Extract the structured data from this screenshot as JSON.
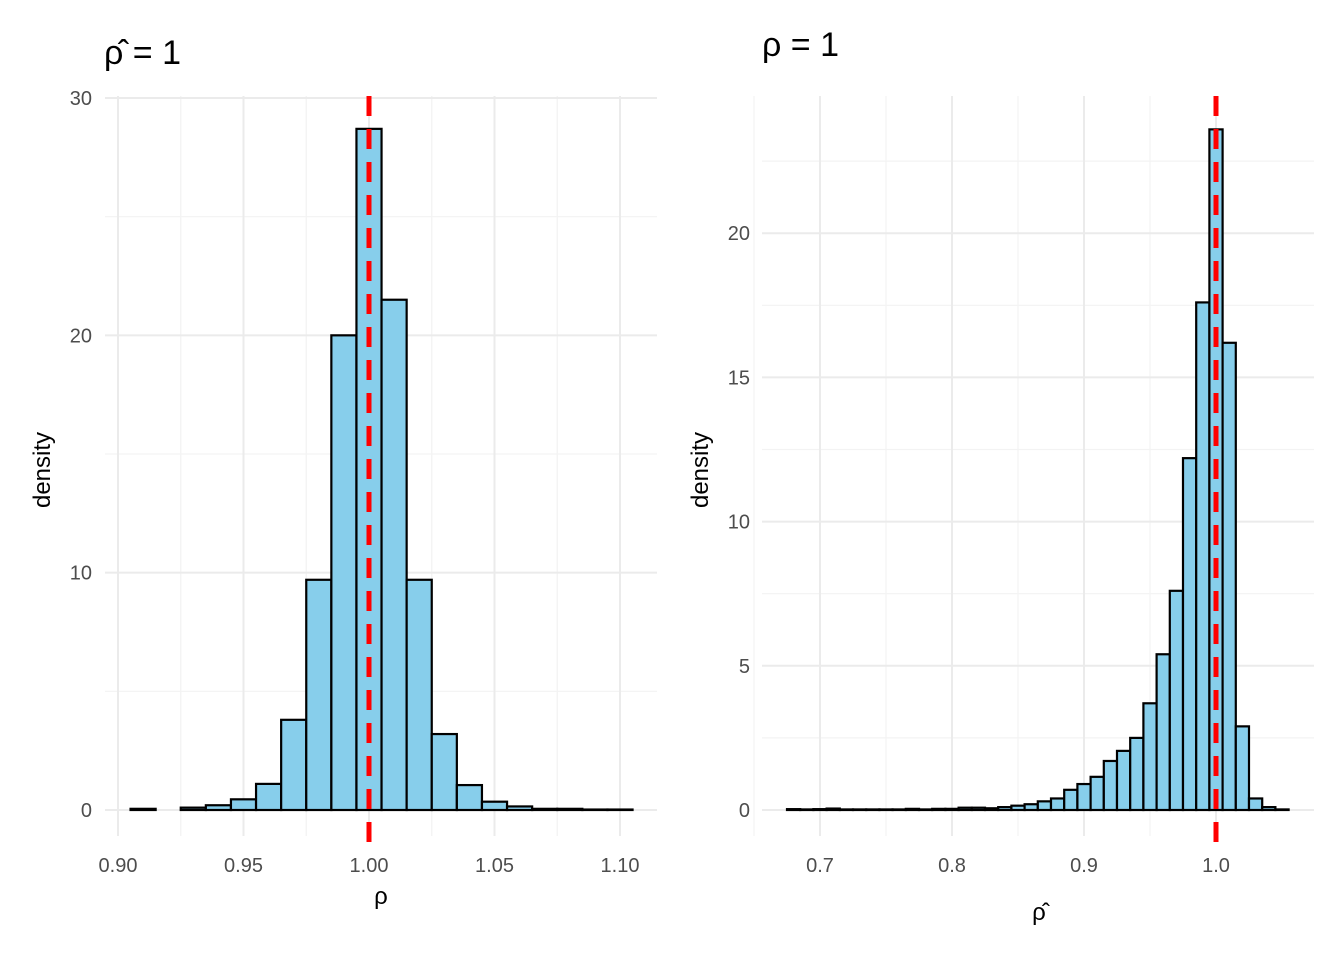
{
  "figure": {
    "panels": [
      {
        "title": "ρ̂ = 1",
        "xlabel": "ρ",
        "ylabel": "density"
      },
      {
        "title": "ρ = 1",
        "xlabel": "ρ̂",
        "ylabel": "density"
      }
    ]
  },
  "colors": {
    "bar_fill": "#87CEEB",
    "bar_stroke": "#000000",
    "reference_line": "#FF0000"
  },
  "chart_data": [
    {
      "type": "bar",
      "subtype": "histogram",
      "title": "ρ̂ = 1",
      "xlabel": "ρ",
      "ylabel": "density",
      "xlim": [
        0.9,
        1.1
      ],
      "ylim": [
        0,
        30
      ],
      "xticks": [
        0.9,
        0.95,
        1.0,
        1.05,
        1.1
      ],
      "xtick_labels": [
        "0.90",
        "0.95",
        "1.00",
        "1.05",
        "1.10"
      ],
      "yticks": [
        0,
        10,
        20,
        30
      ],
      "grid": true,
      "bins": [
        {
          "x0": 0.905,
          "x1": 0.915,
          "density": 0.05
        },
        {
          "x0": 0.915,
          "x1": 0.925,
          "density": 0.0
        },
        {
          "x0": 0.925,
          "x1": 0.935,
          "density": 0.1
        },
        {
          "x0": 0.935,
          "x1": 0.945,
          "density": 0.2
        },
        {
          "x0": 0.945,
          "x1": 0.955,
          "density": 0.45
        },
        {
          "x0": 0.955,
          "x1": 0.965,
          "density": 1.1
        },
        {
          "x0": 0.965,
          "x1": 0.975,
          "density": 3.8
        },
        {
          "x0": 0.975,
          "x1": 0.985,
          "density": 9.7
        },
        {
          "x0": 0.985,
          "x1": 0.995,
          "density": 20.0
        },
        {
          "x0": 0.995,
          "x1": 1.005,
          "density": 28.7
        },
        {
          "x0": 1.005,
          "x1": 1.015,
          "density": 21.5
        },
        {
          "x0": 1.015,
          "x1": 1.025,
          "density": 9.7
        },
        {
          "x0": 1.025,
          "x1": 1.035,
          "density": 3.2
        },
        {
          "x0": 1.035,
          "x1": 1.045,
          "density": 1.05
        },
        {
          "x0": 1.045,
          "x1": 1.055,
          "density": 0.35
        },
        {
          "x0": 1.055,
          "x1": 1.065,
          "density": 0.15
        },
        {
          "x0": 1.065,
          "x1": 1.075,
          "density": 0.05
        },
        {
          "x0": 1.075,
          "x1": 1.085,
          "density": 0.05
        },
        {
          "x0": 1.085,
          "x1": 1.095,
          "density": 0.02
        },
        {
          "x0": 1.095,
          "x1": 1.105,
          "density": 0.02
        }
      ],
      "reference_line": {
        "x": 1.0,
        "style": "dashed"
      }
    },
    {
      "type": "bar",
      "subtype": "histogram",
      "title": "ρ = 1",
      "xlabel": "ρ̂",
      "ylabel": "density",
      "xlim": [
        0.67,
        1.055
      ],
      "ylim": [
        0,
        24
      ],
      "xticks": [
        0.7,
        0.8,
        0.9,
        1.0
      ],
      "xtick_labels": [
        "0.7",
        "0.8",
        "0.9",
        "1.0"
      ],
      "yticks": [
        0,
        5,
        10,
        15,
        20
      ],
      "grid": true,
      "bins": [
        {
          "x0": 0.675,
          "x1": 0.685,
          "density": 0.03
        },
        {
          "x0": 0.685,
          "x1": 0.695,
          "density": 0.02
        },
        {
          "x0": 0.695,
          "x1": 0.705,
          "density": 0.03
        },
        {
          "x0": 0.705,
          "x1": 0.715,
          "density": 0.05
        },
        {
          "x0": 0.715,
          "x1": 0.725,
          "density": 0.02
        },
        {
          "x0": 0.725,
          "x1": 0.735,
          "density": 0.02
        },
        {
          "x0": 0.735,
          "x1": 0.745,
          "density": 0.02
        },
        {
          "x0": 0.745,
          "x1": 0.755,
          "density": 0.02
        },
        {
          "x0": 0.755,
          "x1": 0.765,
          "density": 0.02
        },
        {
          "x0": 0.765,
          "x1": 0.775,
          "density": 0.04
        },
        {
          "x0": 0.775,
          "x1": 0.785,
          "density": 0.02
        },
        {
          "x0": 0.785,
          "x1": 0.795,
          "density": 0.04
        },
        {
          "x0": 0.795,
          "x1": 0.805,
          "density": 0.04
        },
        {
          "x0": 0.805,
          "x1": 0.815,
          "density": 0.08
        },
        {
          "x0": 0.815,
          "x1": 0.825,
          "density": 0.08
        },
        {
          "x0": 0.825,
          "x1": 0.835,
          "density": 0.06
        },
        {
          "x0": 0.835,
          "x1": 0.845,
          "density": 0.1
        },
        {
          "x0": 0.845,
          "x1": 0.855,
          "density": 0.15
        },
        {
          "x0": 0.855,
          "x1": 0.865,
          "density": 0.2
        },
        {
          "x0": 0.865,
          "x1": 0.875,
          "density": 0.3
        },
        {
          "x0": 0.875,
          "x1": 0.885,
          "density": 0.4
        },
        {
          "x0": 0.885,
          "x1": 0.895,
          "density": 0.7
        },
        {
          "x0": 0.895,
          "x1": 0.905,
          "density": 0.9
        },
        {
          "x0": 0.905,
          "x1": 0.915,
          "density": 1.15
        },
        {
          "x0": 0.915,
          "x1": 0.925,
          "density": 1.7
        },
        {
          "x0": 0.925,
          "x1": 0.935,
          "density": 2.05
        },
        {
          "x0": 0.935,
          "x1": 0.945,
          "density": 2.5
        },
        {
          "x0": 0.945,
          "x1": 0.955,
          "density": 3.7
        },
        {
          "x0": 0.955,
          "x1": 0.965,
          "density": 5.4
        },
        {
          "x0": 0.965,
          "x1": 0.975,
          "density": 7.6
        },
        {
          "x0": 0.975,
          "x1": 0.985,
          "density": 12.2
        },
        {
          "x0": 0.985,
          "x1": 0.995,
          "density": 17.6
        },
        {
          "x0": 0.995,
          "x1": 1.005,
          "density": 23.6
        },
        {
          "x0": 1.005,
          "x1": 1.015,
          "density": 16.2
        },
        {
          "x0": 1.015,
          "x1": 1.025,
          "density": 2.9
        },
        {
          "x0": 1.025,
          "x1": 1.035,
          "density": 0.4
        },
        {
          "x0": 1.035,
          "x1": 1.045,
          "density": 0.1
        },
        {
          "x0": 1.045,
          "x1": 1.055,
          "density": 0.02
        }
      ],
      "reference_line": {
        "x": 1.0,
        "style": "dashed"
      }
    }
  ]
}
